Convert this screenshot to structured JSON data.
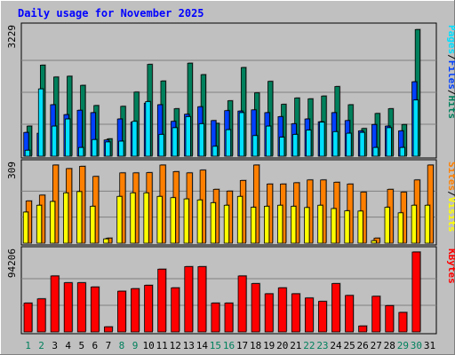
{
  "title": "Daily usage for November 2025",
  "colors": {
    "background": "#c0c0c0",
    "title": "#0000ff",
    "hits": "#00805c",
    "files": "#0040ff",
    "pages": "#00e0ff",
    "visits": "#ffff00",
    "sites": "#ff8000",
    "kbytes": "#ff0000",
    "weekend_label": "#00805c",
    "weekday_label": "#000000"
  },
  "chart_data": [
    {
      "type": "bar",
      "panel": "hits-files-pages",
      "ymax_label": "3229",
      "ylim": [
        0,
        3229
      ],
      "legend": [
        "Pages",
        "/",
        "Files",
        "/",
        "Hits"
      ],
      "categories": [
        "1",
        "2",
        "3",
        "4",
        "5",
        "6",
        "7",
        "8",
        "9",
        "10",
        "11",
        "12",
        "13",
        "14",
        "15",
        "16",
        "17",
        "18",
        "19",
        "20",
        "21",
        "22",
        "23",
        "24",
        "25",
        "26",
        "27",
        "28",
        "29",
        "30",
        "31"
      ],
      "series": [
        {
          "name": "Hits",
          "values": [
            760,
            2300,
            2000,
            2020,
            1790,
            1280,
            440,
            1260,
            1620,
            2320,
            1900,
            1200,
            2350,
            2060,
            830,
            1400,
            2240,
            1600,
            1890,
            1310,
            1470,
            1450,
            1520,
            1760,
            1300,
            700,
            1080,
            1200,
            800,
            3200,
            0
          ]
        },
        {
          "name": "Files",
          "values": [
            600,
            580,
            1300,
            1050,
            1160,
            1100,
            410,
            940,
            860,
            1340,
            1300,
            880,
            1060,
            1250,
            900,
            1150,
            1140,
            1170,
            1100,
            1000,
            820,
            940,
            870,
            1100,
            900,
            640,
            800,
            760,
            640,
            1880,
            0
          ]
        },
        {
          "name": "Pages",
          "values": [
            150,
            1700,
            760,
            940,
            220,
            420,
            360,
            380,
            880,
            1380,
            550,
            720,
            1000,
            820,
            250,
            670,
            1100,
            520,
            760,
            480,
            550,
            660,
            860,
            620,
            580,
            600,
            220,
            720,
            220,
            1420,
            0
          ]
        }
      ]
    },
    {
      "type": "bar",
      "panel": "visits-sites",
      "ymax_label": "309",
      "ylim": [
        0,
        309
      ],
      "legend": [
        "Sites",
        "/",
        "Visits"
      ],
      "categories": [
        "1",
        "2",
        "3",
        "4",
        "5",
        "6",
        "7",
        "8",
        "9",
        "10",
        "11",
        "12",
        "13",
        "14",
        "15",
        "16",
        "17",
        "18",
        "19",
        "20",
        "21",
        "22",
        "23",
        "24",
        "25",
        "26",
        "27",
        "28",
        "29",
        "30",
        "31"
      ],
      "series": [
        {
          "name": "Sites",
          "values": [
            167,
            190,
            309,
            295,
            304,
            264,
            20,
            278,
            278,
            279,
            309,
            283,
            278,
            289,
            213,
            206,
            248,
            309,
            234,
            234,
            239,
            250,
            250,
            241,
            234,
            202,
            20,
            213,
            202,
            250,
            309
          ]
        },
        {
          "name": "Visits",
          "values": [
            123,
            150,
            165,
            199,
            204,
            146,
            17,
            185,
            199,
            199,
            185,
            180,
            175,
            171,
            160,
            150,
            185,
            142,
            146,
            150,
            146,
            141,
            150,
            137,
            128,
            127,
            10,
            142,
            120,
            150,
            150
          ]
        }
      ]
    },
    {
      "type": "bar",
      "panel": "kbytes",
      "ymax_label": "94206",
      "ylim": [
        0,
        94206
      ],
      "legend": [
        "KBytes"
      ],
      "categories": [
        "1",
        "2",
        "3",
        "4",
        "5",
        "6",
        "7",
        "8",
        "9",
        "10",
        "11",
        "12",
        "13",
        "14",
        "15",
        "16",
        "17",
        "18",
        "19",
        "20",
        "21",
        "22",
        "23",
        "24",
        "25",
        "26",
        "27",
        "28",
        "29",
        "30",
        "31"
      ],
      "series": [
        {
          "name": "KBytes",
          "values": [
            34000,
            39000,
            66000,
            58000,
            58000,
            53000,
            6000,
            48000,
            51000,
            55000,
            74000,
            52000,
            77000,
            77000,
            34000,
            34000,
            66000,
            57000,
            45000,
            52000,
            45000,
            40000,
            36000,
            57000,
            43000,
            7000,
            42000,
            31000,
            23000,
            94206,
            0
          ]
        }
      ]
    }
  ],
  "days": {
    "labels": [
      "1",
      "2",
      "3",
      "4",
      "5",
      "6",
      "7",
      "8",
      "9",
      "10",
      "11",
      "12",
      "13",
      "14",
      "15",
      "16",
      "17",
      "18",
      "19",
      "20",
      "21",
      "22",
      "23",
      "24",
      "25",
      "26",
      "27",
      "28",
      "29",
      "30",
      "31"
    ],
    "weekend": [
      1,
      2,
      8,
      9,
      15,
      16,
      22,
      23,
      29,
      30
    ]
  }
}
